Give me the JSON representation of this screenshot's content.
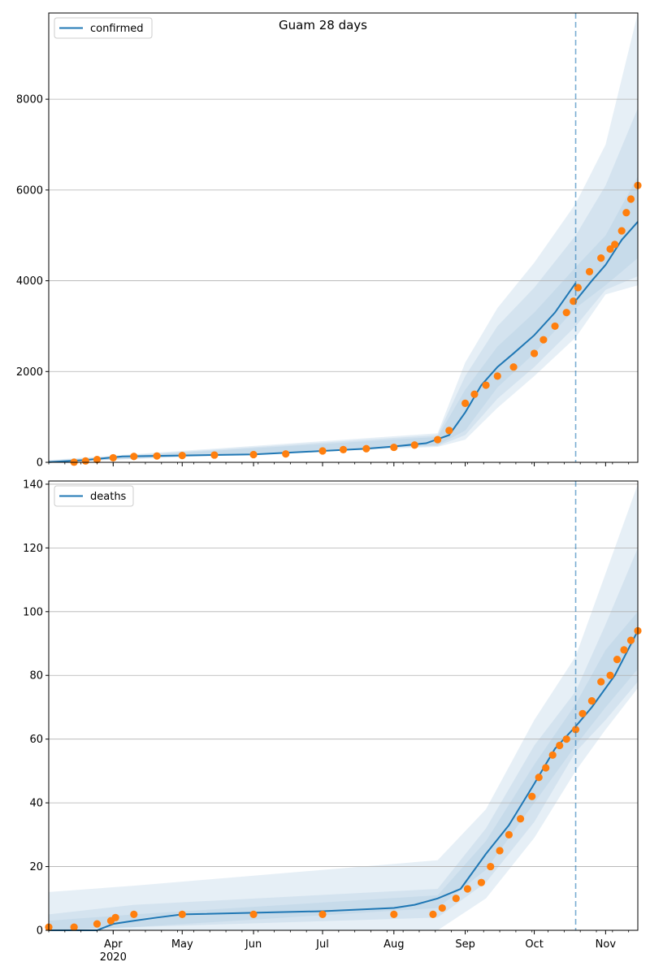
{
  "figure": {
    "title": "Guam 28 days"
  },
  "x_axis": {
    "month_labels": [
      "Apr",
      "May",
      "Jun",
      "Jul",
      "Aug",
      "Sep",
      "Oct",
      "Nov"
    ],
    "year_label": "2020",
    "start_date": "2020-03-04",
    "end_date": "2020-11-15"
  },
  "colors": {
    "model_line": "#1f77b4",
    "observed_points": "#ff7f0e",
    "bands": "#a6c4e0",
    "forecast_marker": "#1f77b4",
    "grid": "#b0b0b0"
  },
  "chart_data": [
    {
      "type": "line",
      "title": "Guam 28 days",
      "legend": [
        "confirmed"
      ],
      "legend_position": "upper-left",
      "grid": "horizontal",
      "ylim": [
        0,
        9900
      ],
      "yticks": [
        0,
        2000,
        4000,
        6000,
        8000
      ],
      "forecast_start": "2020-10-19",
      "series": [
        {
          "name": "confirmed",
          "kind": "model",
          "points": [
            [
              "2020-03-04",
              5
            ],
            [
              "2020-03-20",
              50
            ],
            [
              "2020-04-05",
              130
            ],
            [
              "2020-05-01",
              150
            ],
            [
              "2020-06-01",
              175
            ],
            [
              "2020-07-01",
              250
            ],
            [
              "2020-07-20",
              300
            ],
            [
              "2020-08-01",
              350
            ],
            [
              "2020-08-15",
              420
            ],
            [
              "2020-08-25",
              600
            ],
            [
              "2020-09-01",
              1100
            ],
            [
              "2020-09-08",
              1700
            ],
            [
              "2020-09-15",
              2100
            ],
            [
              "2020-09-22",
              2400
            ],
            [
              "2020-10-01",
              2800
            ],
            [
              "2020-10-10",
              3300
            ],
            [
              "2020-10-19",
              3950
            ],
            [
              "2020-10-19",
              3560
            ],
            [
              "2020-10-26",
              4000
            ],
            [
              "2020-11-01",
              4350
            ],
            [
              "2020-11-08",
              4900
            ],
            [
              "2020-11-15",
              5300
            ]
          ]
        },
        {
          "name": "observed",
          "kind": "observed",
          "points": [
            [
              "2020-03-15",
              3
            ],
            [
              "2020-03-20",
              30
            ],
            [
              "2020-03-25",
              60
            ],
            [
              "2020-04-01",
              100
            ],
            [
              "2020-04-10",
              130
            ],
            [
              "2020-04-20",
              140
            ],
            [
              "2020-05-01",
              150
            ],
            [
              "2020-05-15",
              160
            ],
            [
              "2020-06-01",
              170
            ],
            [
              "2020-06-15",
              185
            ],
            [
              "2020-07-01",
              250
            ],
            [
              "2020-07-10",
              280
            ],
            [
              "2020-07-20",
              300
            ],
            [
              "2020-08-01",
              330
            ],
            [
              "2020-08-10",
              380
            ],
            [
              "2020-08-20",
              500
            ],
            [
              "2020-08-25",
              700
            ],
            [
              "2020-09-01",
              1300
            ],
            [
              "2020-09-05",
              1500
            ],
            [
              "2020-09-10",
              1700
            ],
            [
              "2020-09-15",
              1900
            ],
            [
              "2020-09-22",
              2100
            ],
            [
              "2020-10-01",
              2400
            ],
            [
              "2020-10-05",
              2700
            ],
            [
              "2020-10-10",
              3000
            ],
            [
              "2020-10-15",
              3300
            ],
            [
              "2020-10-18",
              3550
            ],
            [
              "2020-10-20",
              3850
            ],
            [
              "2020-10-25",
              4200
            ],
            [
              "2020-10-30",
              4500
            ],
            [
              "2020-11-03",
              4700
            ],
            [
              "2020-11-05",
              4800
            ],
            [
              "2020-11-08",
              5100
            ],
            [
              "2020-11-10",
              5500
            ],
            [
              "2020-11-12",
              5800
            ],
            [
              "2020-11-15",
              6100
            ]
          ]
        }
      ],
      "bands": [
        [
          [
            "2020-03-04",
            0,
            30
          ],
          [
            "2020-08-20",
            380,
            560
          ],
          [
            "2020-09-01",
            700,
            1600
          ],
          [
            "2020-09-15",
            1650,
            2550
          ],
          [
            "2020-10-01",
            2400,
            3300
          ],
          [
            "2020-10-19",
            3400,
            4300
          ],
          [
            "2020-11-01",
            3900,
            5000
          ],
          [
            "2020-11-15",
            4500,
            6300
          ]
        ],
        [
          [
            "2020-03-04",
            0,
            40
          ],
          [
            "2020-08-20",
            360,
            600
          ],
          [
            "2020-09-01",
            600,
            1900
          ],
          [
            "2020-09-15",
            1400,
            3000
          ],
          [
            "2020-10-01",
            2100,
            3850
          ],
          [
            "2020-10-19",
            3000,
            5000
          ],
          [
            "2020-11-01",
            3800,
            6100
          ],
          [
            "2020-11-15",
            4100,
            7800
          ]
        ],
        [
          [
            "2020-03-04",
            0,
            50
          ],
          [
            "2020-08-20",
            340,
            640
          ],
          [
            "2020-09-01",
            500,
            2200
          ],
          [
            "2020-09-15",
            1200,
            3400
          ],
          [
            "2020-10-01",
            1900,
            4400
          ],
          [
            "2020-10-19",
            2750,
            5700
          ],
          [
            "2020-11-01",
            3700,
            7000
          ],
          [
            "2020-11-15",
            3900,
            9900
          ]
        ]
      ]
    },
    {
      "type": "line",
      "title": "",
      "legend": [
        "deaths"
      ],
      "legend_position": "upper-left",
      "grid": "horizontal",
      "ylim": [
        0,
        141
      ],
      "yticks": [
        0,
        20,
        40,
        60,
        80,
        100,
        120,
        140
      ],
      "forecast_start": "2020-10-19",
      "series": [
        {
          "name": "deaths",
          "kind": "model",
          "points": [
            [
              "2020-03-04",
              0
            ],
            [
              "2020-03-25",
              0
            ],
            [
              "2020-04-01",
              2
            ],
            [
              "2020-04-10",
              3
            ],
            [
              "2020-04-20",
              4
            ],
            [
              "2020-05-01",
              5
            ],
            [
              "2020-07-01",
              6
            ],
            [
              "2020-08-01",
              7
            ],
            [
              "2020-08-10",
              8
            ],
            [
              "2020-08-20",
              10
            ],
            [
              "2020-08-30",
              13
            ],
            [
              "2020-09-10",
              24
            ],
            [
              "2020-09-20",
              33
            ],
            [
              "2020-10-01",
              46
            ],
            [
              "2020-10-10",
              57
            ],
            [
              "2020-10-19",
              64
            ],
            [
              "2020-10-26",
              70
            ],
            [
              "2020-11-05",
              80
            ],
            [
              "2020-11-15",
              94
            ]
          ]
        },
        {
          "name": "observed",
          "kind": "observed",
          "points": [
            [
              "2020-03-04",
              1
            ],
            [
              "2020-03-15",
              1
            ],
            [
              "2020-03-25",
              2
            ],
            [
              "2020-03-31",
              3
            ],
            [
              "2020-04-02",
              4
            ],
            [
              "2020-04-10",
              5
            ],
            [
              "2020-05-01",
              5
            ],
            [
              "2020-06-01",
              5
            ],
            [
              "2020-07-01",
              5
            ],
            [
              "2020-08-01",
              5
            ],
            [
              "2020-08-18",
              5
            ],
            [
              "2020-08-22",
              7
            ],
            [
              "2020-08-28",
              10
            ],
            [
              "2020-09-02",
              13
            ],
            [
              "2020-09-08",
              15
            ],
            [
              "2020-09-12",
              20
            ],
            [
              "2020-09-16",
              25
            ],
            [
              "2020-09-20",
              30
            ],
            [
              "2020-09-25",
              35
            ],
            [
              "2020-09-30",
              42
            ],
            [
              "2020-10-03",
              48
            ],
            [
              "2020-10-06",
              51
            ],
            [
              "2020-10-09",
              55
            ],
            [
              "2020-10-12",
              58
            ],
            [
              "2020-10-15",
              60
            ],
            [
              "2020-10-19",
              63
            ],
            [
              "2020-10-22",
              68
            ],
            [
              "2020-10-26",
              72
            ],
            [
              "2020-10-30",
              78
            ],
            [
              "2020-11-03",
              80
            ],
            [
              "2020-11-06",
              85
            ],
            [
              "2020-11-09",
              88
            ],
            [
              "2020-11-12",
              91
            ],
            [
              "2020-11-15",
              94
            ]
          ]
        }
      ],
      "bands": [
        [
          [
            "2020-03-04",
            0,
            3
          ],
          [
            "2020-04-10",
            1,
            5
          ],
          [
            "2020-08-20",
            7,
            11
          ],
          [
            "2020-09-10",
            19,
            28
          ],
          [
            "2020-10-01",
            40,
            52
          ],
          [
            "2020-10-19",
            58,
            71
          ],
          [
            "2020-11-01",
            70,
            88
          ],
          [
            "2020-11-15",
            82,
            100
          ]
        ],
        [
          [
            "2020-03-04",
            0,
            5
          ],
          [
            "2020-04-10",
            1,
            8
          ],
          [
            "2020-08-20",
            4,
            13
          ],
          [
            "2020-09-10",
            15,
            32
          ],
          [
            "2020-10-01",
            34,
            58
          ],
          [
            "2020-10-19",
            56,
            75
          ],
          [
            "2020-11-01",
            66,
            96
          ],
          [
            "2020-11-15",
            78,
            120
          ]
        ],
        [
          [
            "2020-03-04",
            0,
            12
          ],
          [
            "2020-04-10",
            0,
            14
          ],
          [
            "2020-08-20",
            0,
            22
          ],
          [
            "2020-09-10",
            10,
            38
          ],
          [
            "2020-10-01",
            29,
            66
          ],
          [
            "2020-10-19",
            50,
            86
          ],
          [
            "2020-11-01",
            63,
            112
          ],
          [
            "2020-11-15",
            76,
            140
          ]
        ]
      ]
    }
  ]
}
